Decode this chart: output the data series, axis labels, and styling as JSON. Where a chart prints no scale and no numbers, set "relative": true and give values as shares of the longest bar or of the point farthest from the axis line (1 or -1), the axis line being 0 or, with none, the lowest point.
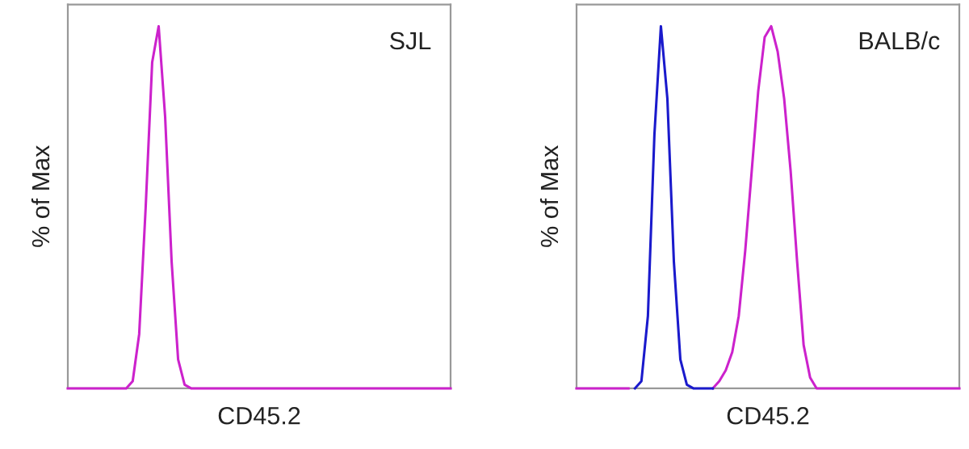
{
  "chart_data": [
    {
      "type": "line",
      "relative": true,
      "ylabel": "% of Max",
      "xlabel": "CD45.2",
      "annotations": [
        "SJL"
      ],
      "tick_labels": false,
      "categories": [
        null,
        null,
        null,
        null,
        null,
        null,
        null,
        null,
        null,
        null,
        null,
        null,
        null,
        null,
        null,
        null,
        null,
        null,
        null,
        null,
        null,
        null,
        null,
        null,
        null,
        null,
        null,
        null,
        null,
        null,
        null,
        null,
        null,
        null,
        null,
        null,
        null,
        null,
        null,
        null,
        null,
        null,
        null,
        null,
        null,
        null,
        null,
        null,
        null,
        null,
        null,
        null,
        null,
        null,
        null,
        null,
        null,
        null,
        null,
        null
      ],
      "series": [
        {
          "color": "#cc22cc",
          "values": [
            0,
            0,
            0,
            0,
            0,
            0,
            0,
            0,
            0,
            0,
            0.02,
            0.15,
            0.5,
            0.9,
            1.0,
            0.75,
            0.35,
            0.08,
            0.01,
            0,
            0,
            0,
            0,
            0,
            0,
            0,
            0,
            0,
            0,
            0,
            0,
            0,
            0,
            0,
            0,
            0,
            0,
            0,
            0,
            0,
            0,
            0,
            0,
            0,
            0,
            0,
            0,
            0,
            0,
            0,
            0,
            0,
            0,
            0,
            0,
            0,
            0,
            0,
            0,
            0
          ]
        }
      ]
    },
    {
      "type": "line",
      "relative": true,
      "ylabel": "% of Max",
      "xlabel": "CD45.2",
      "annotations": [
        "BALB/c"
      ],
      "tick_labels": false,
      "categories": [
        null,
        null,
        null,
        null,
        null,
        null,
        null,
        null,
        null,
        null,
        null,
        null,
        null,
        null,
        null,
        null,
        null,
        null,
        null,
        null,
        null,
        null,
        null,
        null,
        null,
        null,
        null,
        null,
        null,
        null,
        null,
        null,
        null,
        null,
        null,
        null,
        null,
        null,
        null,
        null,
        null,
        null,
        null,
        null,
        null,
        null,
        null,
        null,
        null,
        null,
        null,
        null,
        null,
        null,
        null,
        null,
        null,
        null,
        null,
        null
      ],
      "series": [
        {
          "color": "#cc22cc",
          "values": [
            0,
            0,
            0,
            0,
            0,
            0,
            0,
            0,
            0,
            null,
            null,
            null,
            null,
            null,
            null,
            null,
            null,
            null,
            null,
            null,
            null,
            0,
            0.02,
            0.05,
            0.1,
            0.2,
            0.38,
            0.6,
            0.82,
            0.97,
            1.0,
            0.93,
            0.8,
            0.6,
            0.35,
            0.12,
            0.03,
            0,
            0,
            0,
            0,
            0,
            0,
            0,
            0,
            0,
            0,
            0,
            0,
            0,
            0,
            0,
            0,
            0,
            0,
            0,
            0,
            0,
            0,
            0
          ]
        },
        {
          "color": "#1a1acc",
          "values": [
            null,
            null,
            null,
            null,
            null,
            null,
            null,
            null,
            null,
            0,
            0.02,
            0.2,
            0.7,
            1.0,
            0.8,
            0.35,
            0.08,
            0.01,
            0,
            0,
            0,
            0,
            null,
            null,
            null,
            null,
            null,
            null,
            null,
            null,
            null,
            null,
            null,
            null,
            null,
            null,
            null,
            null,
            null,
            null,
            null,
            null,
            null,
            null,
            null,
            null,
            null,
            null,
            null,
            null,
            null,
            null,
            null,
            null,
            null,
            null,
            null,
            null,
            null,
            null
          ]
        }
      ]
    }
  ]
}
